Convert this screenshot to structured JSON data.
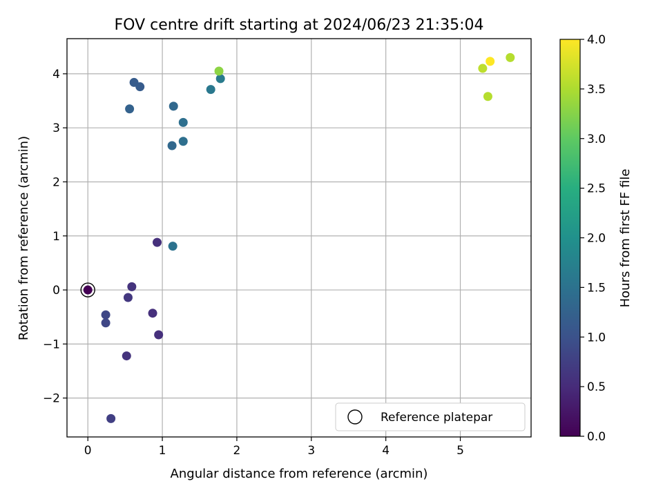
{
  "chart_data": {
    "type": "scatter",
    "title": "FOV centre drift starting at 2024/06/23 21:35:04",
    "xlabel": "Angular distance from reference (arcmin)",
    "ylabel": "Rotation from reference (arcmin)",
    "xlim": [
      -0.28,
      5.95
    ],
    "ylim": [
      -2.72,
      4.65
    ],
    "xticks": [
      "0",
      "1",
      "2",
      "3",
      "4",
      "5"
    ],
    "yticks": [
      "−2",
      "−1",
      "0",
      "1",
      "2",
      "3",
      "4"
    ],
    "grid": true,
    "colorbar": {
      "label": "Hours from first FF file",
      "range": [
        0,
        4
      ],
      "ticks": [
        "0.0",
        "0.5",
        "1.0",
        "1.5",
        "2.0",
        "2.5",
        "3.0",
        "3.5",
        "4.0"
      ],
      "colormap": "viridis"
    },
    "legend": {
      "entries": [
        "Reference platepar"
      ],
      "placement": "lower-right"
    },
    "reference_point": {
      "x": 0,
      "y": 0
    },
    "points": [
      {
        "x": 0.0,
        "y": 0.0,
        "hours": 0.0
      },
      {
        "x": 0.59,
        "y": 0.06,
        "hours": 0.6
      },
      {
        "x": 0.54,
        "y": -0.14,
        "hours": 0.65
      },
      {
        "x": 0.24,
        "y": -0.46,
        "hours": 0.85
      },
      {
        "x": 0.24,
        "y": -0.61,
        "hours": 0.85
      },
      {
        "x": 0.87,
        "y": -0.43,
        "hours": 0.55
      },
      {
        "x": 0.95,
        "y": -0.83,
        "hours": 0.55
      },
      {
        "x": 0.52,
        "y": -1.22,
        "hours": 0.6
      },
      {
        "x": 0.31,
        "y": -2.38,
        "hours": 0.75
      },
      {
        "x": 0.93,
        "y": 0.88,
        "hours": 0.55
      },
      {
        "x": 1.14,
        "y": 0.81,
        "hours": 1.5
      },
      {
        "x": 0.56,
        "y": 3.35,
        "hours": 1.25
      },
      {
        "x": 0.62,
        "y": 3.84,
        "hours": 1.15
      },
      {
        "x": 0.7,
        "y": 3.76,
        "hours": 1.15
      },
      {
        "x": 1.15,
        "y": 3.4,
        "hours": 1.35
      },
      {
        "x": 1.28,
        "y": 3.1,
        "hours": 1.45
      },
      {
        "x": 1.13,
        "y": 2.67,
        "hours": 1.35
      },
      {
        "x": 1.28,
        "y": 2.75,
        "hours": 1.45
      },
      {
        "x": 1.65,
        "y": 3.71,
        "hours": 1.6
      },
      {
        "x": 1.78,
        "y": 3.91,
        "hours": 1.65
      },
      {
        "x": 1.76,
        "y": 4.05,
        "hours": 3.3
      },
      {
        "x": 5.3,
        "y": 4.1,
        "hours": 3.6
      },
      {
        "x": 5.4,
        "y": 4.23,
        "hours": 4.0
      },
      {
        "x": 5.37,
        "y": 3.58,
        "hours": 3.55
      },
      {
        "x": 5.67,
        "y": 4.3,
        "hours": 3.55
      }
    ]
  }
}
